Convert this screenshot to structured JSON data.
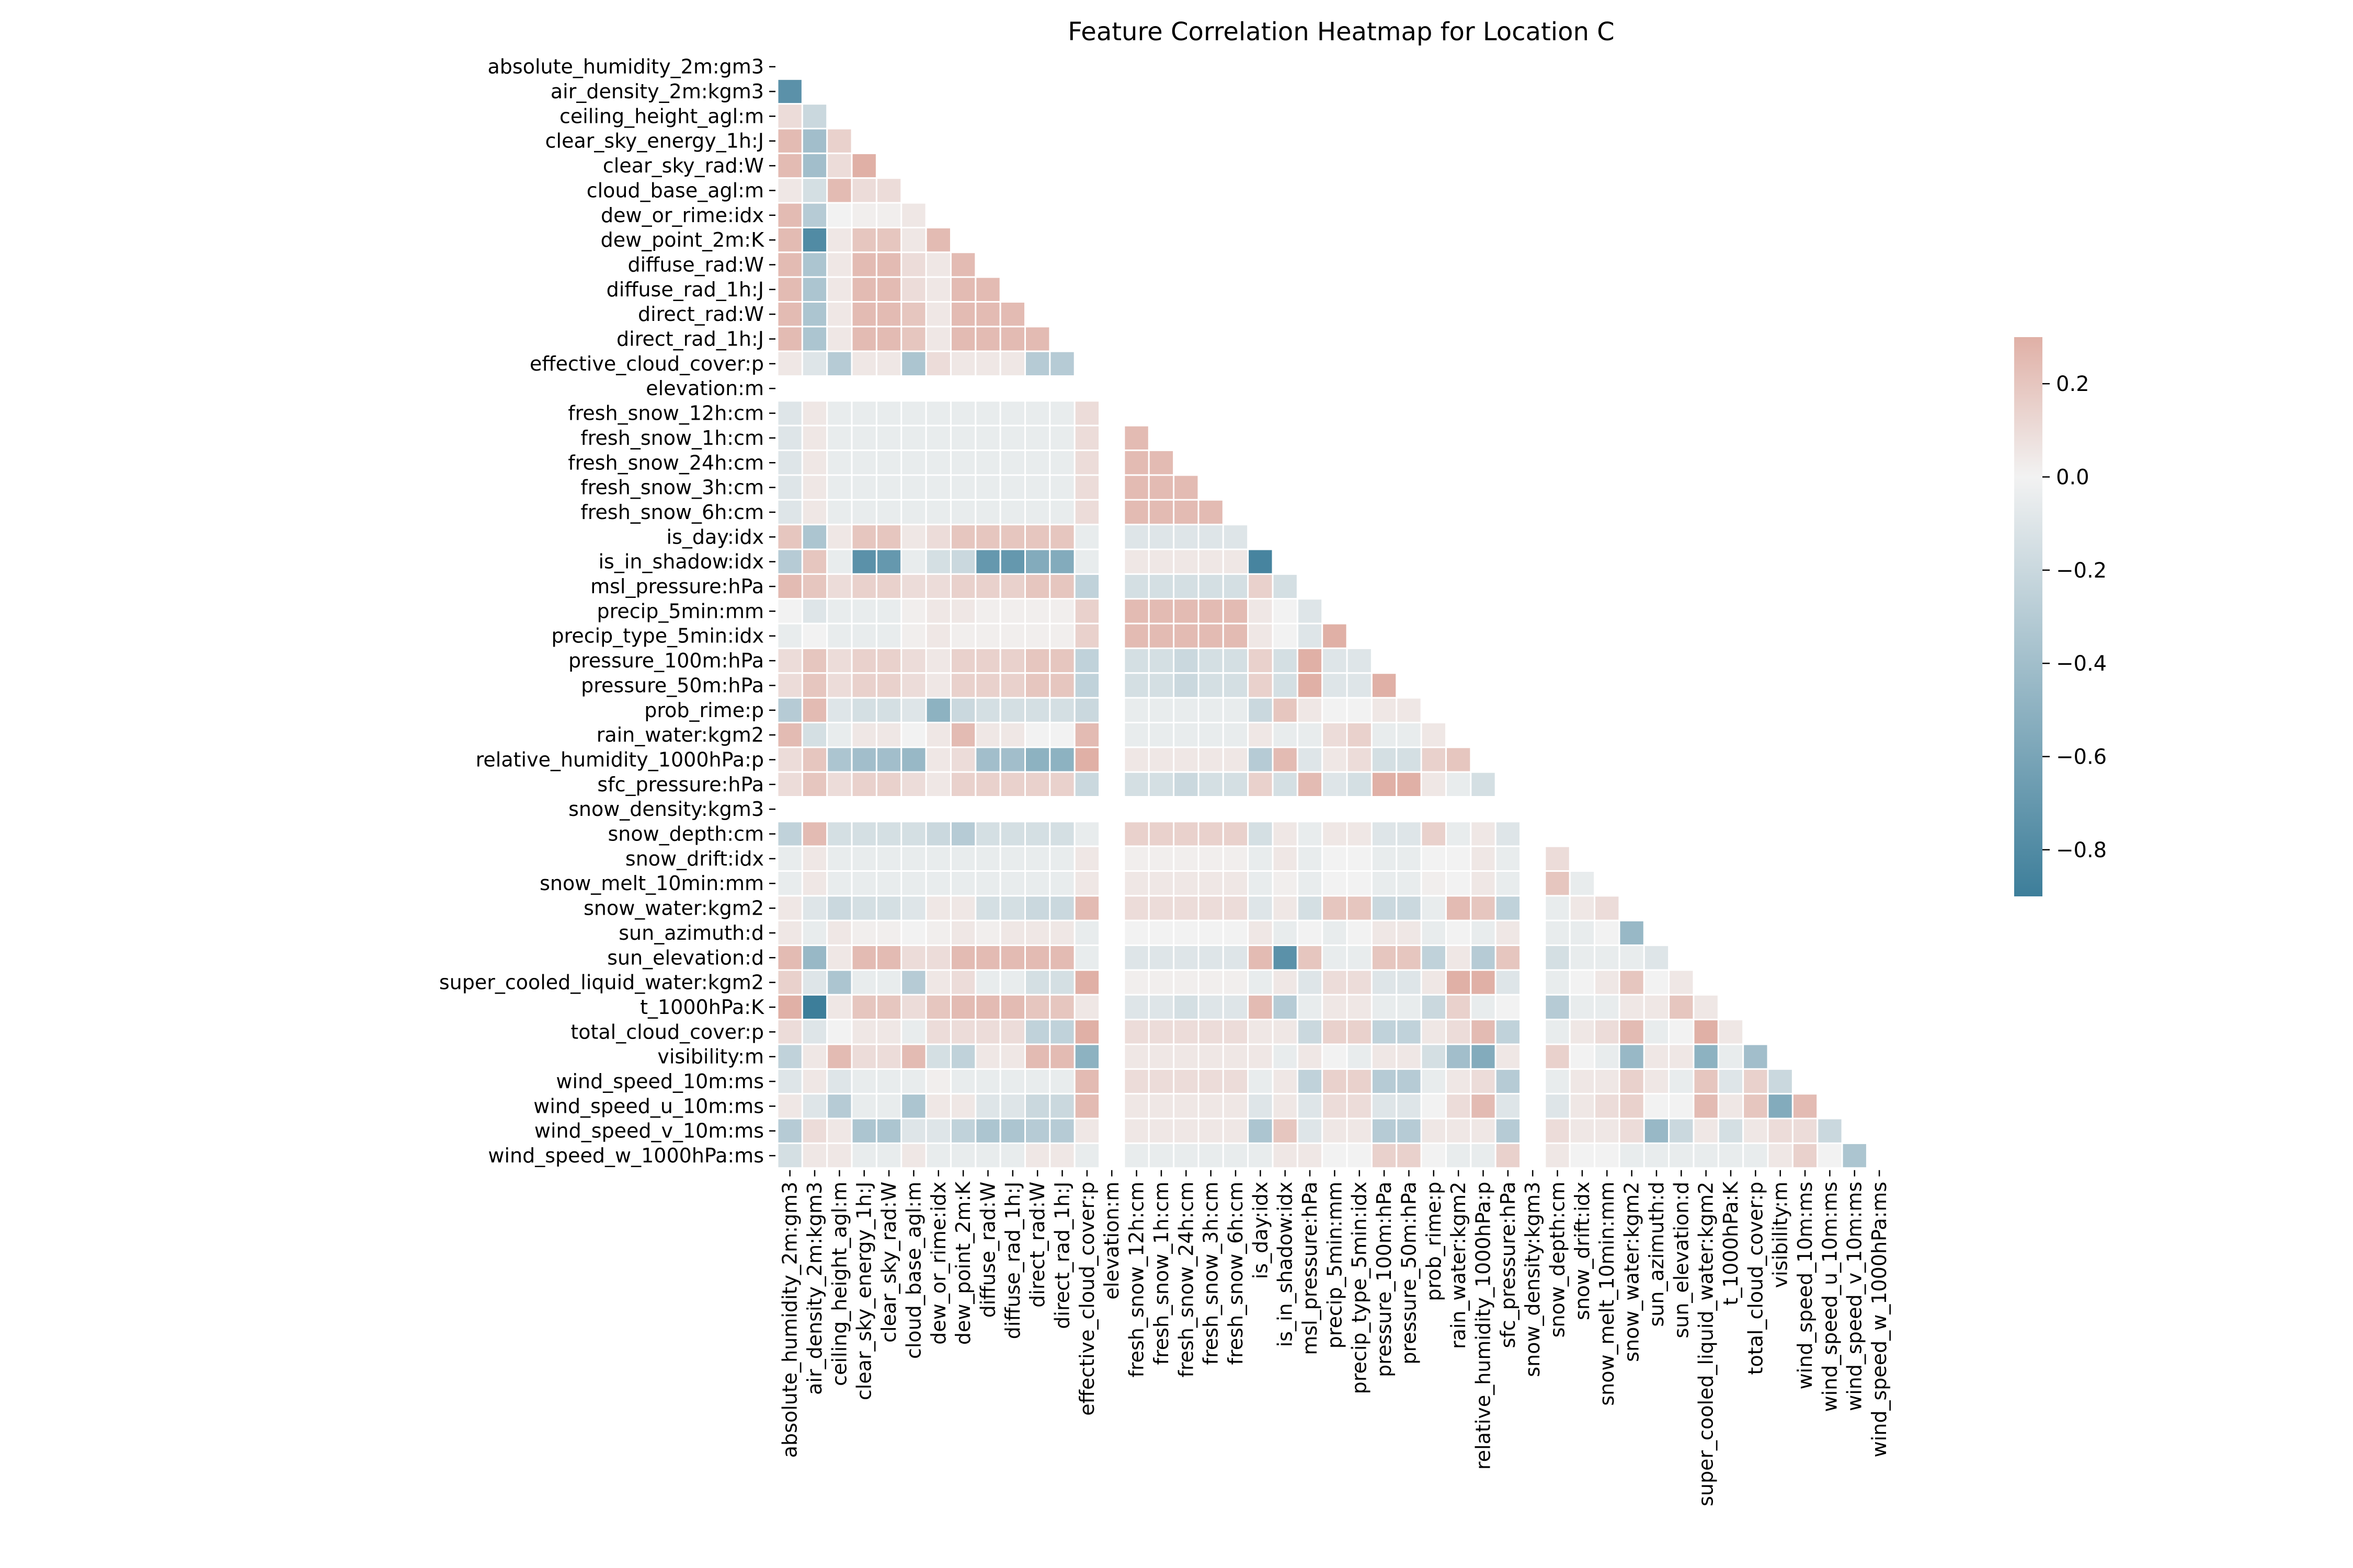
{
  "chart_data": {
    "type": "heatmap",
    "title": "Feature Correlation Heatmap for Location C",
    "xlabel": "",
    "ylabel": "",
    "mask": "upper-triangle including diagonal",
    "features": [
      "absolute_humidity_2m:gm3",
      "air_density_2m:kgm3",
      "ceiling_height_agl:m",
      "clear_sky_energy_1h:J",
      "clear_sky_rad:W",
      "cloud_base_agl:m",
      "dew_or_rime:idx",
      "dew_point_2m:K",
      "diffuse_rad:W",
      "diffuse_rad_1h:J",
      "direct_rad:W",
      "direct_rad_1h:J",
      "effective_cloud_cover:p",
      "elevation:m",
      "fresh_snow_12h:cm",
      "fresh_snow_1h:cm",
      "fresh_snow_24h:cm",
      "fresh_snow_3h:cm",
      "fresh_snow_6h:cm",
      "is_day:idx",
      "is_in_shadow:idx",
      "msl_pressure:hPa",
      "precip_5min:mm",
      "precip_type_5min:idx",
      "pressure_100m:hPa",
      "pressure_50m:hPa",
      "prob_rime:p",
      "rain_water:kgm2",
      "relative_humidity_1000hPa:p",
      "sfc_pressure:hPa",
      "snow_density:kgm3",
      "snow_depth:cm",
      "snow_drift:idx",
      "snow_melt_10min:mm",
      "snow_water:kgm2",
      "sun_azimuth:d",
      "sun_elevation:d",
      "super_cooled_liquid_water:kgm2",
      "t_1000hPa:K",
      "total_cloud_cover:p",
      "visibility:m",
      "wind_speed_10m:ms",
      "wind_speed_u_10m:ms",
      "wind_speed_v_10m:ms",
      "wind_speed_w_1000hPa:ms"
    ],
    "values": [
      [],
      [
        -0.75
      ],
      [
        0.1,
        -0.2
      ],
      [
        0.25,
        -0.4,
        0.15
      ],
      [
        0.25,
        -0.4,
        0.1,
        0.3
      ],
      [
        0.05,
        -0.15,
        0.25,
        0.1,
        0.1
      ],
      [
        0.25,
        -0.3,
        0.0,
        0.02,
        0.02,
        0.05
      ],
      [
        0.25,
        -0.8,
        0.05,
        0.2,
        0.2,
        0.05,
        0.25
      ],
      [
        0.25,
        -0.35,
        0.05,
        0.25,
        0.25,
        0.1,
        0.05,
        0.25
      ],
      [
        0.25,
        -0.35,
        0.05,
        0.25,
        0.25,
        0.1,
        0.05,
        0.25,
        0.25
      ],
      [
        0.25,
        -0.35,
        0.05,
        0.25,
        0.25,
        0.2,
        0.05,
        0.25,
        0.25,
        0.25
      ],
      [
        0.25,
        -0.35,
        0.05,
        0.25,
        0.25,
        0.2,
        0.05,
        0.25,
        0.25,
        0.25,
        0.25
      ],
      [
        0.05,
        -0.1,
        -0.3,
        0.05,
        0.05,
        -0.35,
        0.1,
        0.05,
        0.05,
        0.05,
        -0.3,
        -0.3
      ],
      [
        null,
        null,
        null,
        null,
        null,
        null,
        null,
        null,
        null,
        null,
        null,
        null,
        null
      ],
      [
        -0.1,
        0.05,
        -0.05,
        -0.05,
        -0.05,
        -0.05,
        -0.05,
        -0.05,
        -0.05,
        -0.05,
        -0.05,
        -0.05,
        0.1,
        null
      ],
      [
        -0.1,
        0.05,
        -0.05,
        -0.05,
        -0.05,
        -0.05,
        -0.05,
        -0.05,
        -0.05,
        -0.05,
        -0.05,
        -0.05,
        0.1,
        null,
        0.25
      ],
      [
        -0.1,
        0.05,
        -0.05,
        -0.05,
        -0.05,
        -0.05,
        -0.05,
        -0.05,
        -0.05,
        -0.05,
        -0.05,
        -0.05,
        0.1,
        null,
        0.25,
        0.25
      ],
      [
        -0.1,
        0.05,
        -0.05,
        -0.05,
        -0.05,
        -0.05,
        -0.05,
        -0.05,
        -0.05,
        -0.05,
        -0.05,
        -0.05,
        0.1,
        null,
        0.25,
        0.25,
        0.25
      ],
      [
        -0.1,
        0.05,
        -0.05,
        -0.05,
        -0.05,
        -0.05,
        -0.05,
        -0.05,
        -0.05,
        -0.05,
        -0.05,
        -0.05,
        0.1,
        null,
        0.25,
        0.25,
        0.25,
        0.25
      ],
      [
        0.2,
        -0.35,
        0.05,
        0.2,
        0.2,
        0.05,
        0.1,
        0.2,
        0.2,
        0.2,
        0.2,
        0.2,
        -0.05,
        null,
        -0.1,
        -0.1,
        -0.1,
        -0.1,
        -0.1
      ],
      [
        -0.3,
        0.2,
        -0.05,
        -0.75,
        -0.7,
        -0.05,
        -0.15,
        -0.2,
        -0.7,
        -0.7,
        -0.55,
        -0.55,
        -0.05,
        null,
        0.05,
        0.05,
        0.05,
        0.05,
        0.05,
        -0.85
      ],
      [
        0.25,
        0.2,
        0.1,
        0.15,
        0.15,
        0.1,
        0.1,
        0.15,
        0.15,
        0.15,
        0.2,
        0.2,
        -0.25,
        null,
        -0.15,
        -0.15,
        -0.15,
        -0.15,
        -0.15,
        0.15,
        -0.15
      ],
      [
        0.0,
        -0.1,
        -0.05,
        -0.05,
        -0.05,
        0.02,
        0.05,
        0.05,
        0.02,
        0.02,
        0.02,
        0.02,
        0.15,
        null,
        0.25,
        0.25,
        0.25,
        0.25,
        0.25,
        0.05,
        0.0,
        -0.1
      ],
      [
        -0.05,
        0.0,
        -0.05,
        -0.05,
        -0.05,
        0.02,
        0.05,
        0.02,
        0.02,
        0.02,
        0.02,
        0.02,
        0.15,
        null,
        0.25,
        0.25,
        0.25,
        0.25,
        0.25,
        0.05,
        0.0,
        -0.1,
        0.3
      ],
      [
        0.1,
        0.2,
        0.1,
        0.15,
        0.15,
        0.1,
        0.05,
        0.15,
        0.15,
        0.15,
        0.2,
        0.2,
        -0.25,
        null,
        -0.15,
        -0.15,
        -0.2,
        -0.15,
        -0.15,
        0.15,
        -0.15,
        0.3,
        -0.1,
        -0.1
      ],
      [
        0.1,
        0.2,
        0.1,
        0.15,
        0.15,
        0.1,
        0.05,
        0.15,
        0.15,
        0.15,
        0.2,
        0.2,
        -0.25,
        null,
        -0.15,
        -0.15,
        -0.2,
        -0.15,
        -0.15,
        0.15,
        -0.15,
        0.3,
        -0.1,
        -0.1,
        0.3
      ],
      [
        -0.3,
        0.25,
        -0.1,
        -0.15,
        -0.15,
        -0.1,
        -0.5,
        -0.2,
        -0.15,
        -0.15,
        -0.15,
        -0.15,
        -0.2,
        null,
        -0.05,
        -0.05,
        -0.05,
        -0.05,
        -0.05,
        -0.2,
        0.2,
        0.05,
        0.0,
        0.0,
        0.05,
        0.05
      ],
      [
        0.25,
        -0.15,
        -0.05,
        0.05,
        0.05,
        0.0,
        0.05,
        0.25,
        0.05,
        0.05,
        0.0,
        0.0,
        0.25,
        null,
        -0.05,
        -0.05,
        -0.05,
        -0.05,
        -0.05,
        0.05,
        -0.05,
        -0.05,
        0.1,
        0.15,
        -0.05,
        -0.05,
        0.05
      ],
      [
        0.1,
        0.2,
        -0.35,
        -0.4,
        -0.4,
        -0.45,
        0.05,
        0.1,
        -0.4,
        -0.4,
        -0.5,
        -0.5,
        0.3,
        null,
        0.05,
        0.05,
        0.05,
        0.05,
        0.05,
        -0.3,
        0.25,
        -0.1,
        0.05,
        0.1,
        -0.15,
        -0.15,
        0.15,
        0.2
      ],
      [
        0.1,
        0.2,
        0.1,
        0.15,
        0.15,
        0.1,
        0.05,
        0.15,
        0.15,
        0.15,
        0.15,
        0.15,
        -0.2,
        null,
        -0.15,
        -0.15,
        -0.2,
        -0.15,
        -0.15,
        0.15,
        -0.15,
        0.25,
        -0.1,
        -0.15,
        0.3,
        0.3,
        0.05,
        -0.05,
        -0.15
      ],
      [
        null,
        null,
        null,
        null,
        null,
        null,
        null,
        null,
        null,
        null,
        null,
        null,
        null,
        null,
        null,
        null,
        null,
        null,
        null,
        null,
        null,
        null,
        null,
        null,
        null,
        null,
        null,
        null,
        null,
        null
      ],
      [
        -0.25,
        0.25,
        -0.15,
        -0.15,
        -0.15,
        -0.15,
        -0.2,
        -0.3,
        -0.15,
        -0.15,
        -0.15,
        -0.15,
        -0.05,
        null,
        0.15,
        0.15,
        0.15,
        0.15,
        0.15,
        -0.15,
        0.05,
        -0.05,
        0.05,
        0.05,
        -0.1,
        -0.1,
        0.15,
        -0.05,
        0.05,
        -0.1,
        null
      ],
      [
        -0.05,
        0.05,
        -0.05,
        -0.05,
        -0.05,
        -0.05,
        -0.05,
        -0.05,
        -0.05,
        -0.05,
        -0.05,
        -0.05,
        0.05,
        null,
        0.02,
        0.02,
        0.02,
        0.02,
        0.02,
        -0.05,
        0.05,
        -0.05,
        0.0,
        0.0,
        -0.05,
        -0.05,
        0.0,
        0.0,
        0.05,
        -0.05,
        null,
        0.1
      ],
      [
        -0.05,
        0.05,
        -0.05,
        -0.05,
        -0.05,
        -0.05,
        -0.05,
        -0.05,
        -0.05,
        -0.05,
        -0.05,
        -0.05,
        0.05,
        null,
        0.05,
        0.05,
        0.05,
        0.05,
        0.05,
        -0.05,
        0.02,
        -0.05,
        0.0,
        0.0,
        -0.05,
        -0.05,
        0.02,
        0.0,
        0.05,
        -0.05,
        null,
        0.2,
        -0.05
      ],
      [
        0.05,
        -0.1,
        -0.2,
        -0.15,
        -0.15,
        -0.1,
        0.05,
        0.05,
        -0.15,
        -0.15,
        -0.2,
        -0.2,
        0.25,
        null,
        0.1,
        0.1,
        0.1,
        0.1,
        0.1,
        -0.1,
        0.05,
        -0.15,
        0.2,
        0.2,
        -0.2,
        -0.2,
        -0.05,
        0.25,
        0.2,
        -0.25,
        null,
        -0.05,
        0.05,
        0.1
      ],
      [
        0.05,
        -0.05,
        0.05,
        0.02,
        0.02,
        0.0,
        0.02,
        0.05,
        0.02,
        0.05,
        0.05,
        0.05,
        -0.05,
        null,
        0.0,
        0.0,
        0.0,
        0.0,
        0.0,
        0.05,
        -0.05,
        0.0,
        -0.05,
        0.0,
        0.05,
        0.05,
        -0.05,
        0.0,
        -0.05,
        0.05,
        null,
        -0.05,
        -0.05,
        0.0,
        -0.45
      ],
      [
        0.25,
        -0.45,
        0.05,
        0.25,
        0.25,
        0.1,
        0.1,
        0.25,
        0.25,
        0.25,
        0.25,
        0.25,
        -0.05,
        null,
        -0.1,
        -0.1,
        -0.1,
        -0.1,
        -0.1,
        0.25,
        -0.75,
        0.2,
        -0.05,
        -0.05,
        0.2,
        0.2,
        -0.25,
        0.05,
        -0.3,
        0.2,
        null,
        -0.15,
        -0.05,
        -0.05,
        -0.05,
        -0.1
      ],
      [
        0.15,
        -0.1,
        -0.35,
        -0.05,
        -0.05,
        -0.3,
        0.05,
        0.1,
        -0.05,
        -0.05,
        -0.15,
        -0.15,
        0.3,
        null,
        0.02,
        0.02,
        0.02,
        0.02,
        0.02,
        -0.05,
        0.05,
        -0.1,
        0.1,
        0.1,
        -0.1,
        -0.1,
        0.05,
        0.3,
        0.3,
        -0.1,
        null,
        -0.05,
        0.0,
        0.05,
        0.2,
        0.0,
        0.05
      ],
      [
        0.3,
        -0.9,
        0.05,
        0.2,
        0.2,
        0.1,
        0.2,
        0.25,
        0.25,
        0.25,
        0.2,
        0.2,
        0.05,
        null,
        -0.1,
        -0.1,
        -0.15,
        -0.1,
        -0.1,
        0.25,
        -0.3,
        -0.05,
        0.05,
        0.05,
        -0.05,
        -0.05,
        -0.2,
        0.15,
        -0.05,
        0.0,
        null,
        -0.3,
        -0.05,
        -0.05,
        0.05,
        0.05,
        0.2,
        0.05
      ],
      [
        0.1,
        -0.1,
        0.0,
        0.05,
        0.05,
        -0.05,
        0.1,
        0.1,
        0.1,
        0.1,
        -0.25,
        -0.25,
        0.3,
        null,
        0.1,
        0.1,
        0.1,
        0.1,
        0.1,
        0.05,
        0.05,
        -0.2,
        0.15,
        0.15,
        -0.25,
        -0.25,
        0.05,
        0.1,
        0.25,
        -0.25,
        null,
        -0.05,
        0.05,
        0.1,
        0.25,
        -0.05,
        0.0,
        0.3,
        0.05
      ],
      [
        -0.25,
        0.05,
        0.25,
        0.1,
        0.1,
        0.25,
        -0.15,
        -0.25,
        0.05,
        0.05,
        0.25,
        0.25,
        -0.5,
        null,
        0.05,
        0.05,
        0.05,
        0.05,
        0.05,
        0.05,
        -0.05,
        0.05,
        0.0,
        -0.05,
        0.05,
        0.05,
        -0.15,
        -0.4,
        -0.55,
        0.05,
        null,
        0.15,
        0.0,
        -0.05,
        -0.45,
        0.05,
        0.05,
        -0.5,
        -0.05,
        -0.4
      ],
      [
        -0.1,
        0.05,
        -0.1,
        -0.05,
        -0.05,
        -0.05,
        0.02,
        -0.05,
        -0.05,
        -0.05,
        -0.05,
        -0.05,
        0.25,
        null,
        0.1,
        0.1,
        0.1,
        0.1,
        0.1,
        -0.05,
        0.05,
        -0.25,
        0.15,
        0.15,
        -0.3,
        -0.3,
        -0.05,
        0.05,
        0.1,
        -0.3,
        null,
        -0.05,
        0.05,
        0.05,
        0.15,
        0.05,
        -0.05,
        0.2,
        -0.1,
        0.15,
        -0.2
      ],
      [
        0.05,
        -0.1,
        -0.3,
        -0.05,
        -0.05,
        -0.35,
        0.05,
        0.05,
        -0.1,
        -0.1,
        -0.2,
        -0.2,
        0.25,
        null,
        0.05,
        0.05,
        0.05,
        0.05,
        0.05,
        -0.1,
        0.05,
        -0.1,
        0.1,
        0.1,
        -0.1,
        -0.1,
        0.0,
        0.1,
        0.25,
        -0.1,
        null,
        -0.1,
        0.05,
        0.1,
        0.15,
        0.0,
        0.0,
        0.25,
        0.05,
        0.2,
        -0.55,
        0.25
      ],
      [
        -0.3,
        0.1,
        0.05,
        -0.35,
        -0.35,
        -0.1,
        -0.1,
        -0.25,
        -0.35,
        -0.35,
        -0.3,
        -0.3,
        0.05,
        null,
        0.05,
        0.05,
        0.05,
        0.05,
        0.05,
        -0.35,
        0.2,
        -0.1,
        0.05,
        0.05,
        -0.3,
        -0.3,
        0.05,
        0.05,
        0.05,
        -0.3,
        null,
        0.1,
        0.05,
        0.05,
        0.1,
        -0.45,
        -0.2,
        0.05,
        -0.15,
        0.05,
        0.1,
        0.1,
        -0.2
      ],
      [
        -0.15,
        0.05,
        0.05,
        -0.05,
        -0.05,
        0.05,
        -0.05,
        -0.05,
        -0.05,
        -0.05,
        0.05,
        0.05,
        -0.05,
        null,
        -0.05,
        -0.05,
        -0.05,
        -0.05,
        -0.05,
        -0.05,
        0.05,
        0.05,
        0.0,
        0.0,
        0.15,
        0.15,
        0.0,
        -0.05,
        -0.05,
        0.15,
        null,
        0.05,
        0.0,
        0.0,
        -0.05,
        -0.05,
        -0.05,
        -0.05,
        -0.05,
        -0.05,
        0.05,
        0.15,
        0.0,
        -0.35
      ]
    ],
    "vmin": -0.9,
    "vmax": 0.3,
    "colormap": {
      "negative": "#3d7e9a",
      "neutral": "#f2f2f2",
      "positive": "#e0b0a6"
    },
    "colorbar": {
      "ticks": [
        0.2,
        0.0,
        -0.2,
        -0.4,
        -0.6,
        -0.8
      ],
      "tick_labels": [
        "0.2",
        "0.0",
        "−0.2",
        "−0.4",
        "−0.6",
        "−0.8"
      ],
      "position": "right"
    },
    "grid": false
  }
}
